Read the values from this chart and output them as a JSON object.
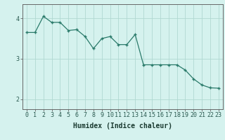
{
  "x": [
    0,
    1,
    2,
    3,
    4,
    5,
    6,
    7,
    8,
    9,
    10,
    11,
    12,
    13,
    14,
    15,
    16,
    17,
    18,
    19,
    20,
    21,
    22,
    23
  ],
  "y": [
    3.65,
    3.65,
    4.05,
    3.9,
    3.9,
    3.7,
    3.72,
    3.55,
    3.25,
    3.5,
    3.55,
    3.35,
    3.35,
    3.6,
    2.85,
    2.85,
    2.85,
    2.85,
    2.85,
    2.72,
    2.5,
    2.35,
    2.28,
    2.27
  ],
  "line_color": "#2a7a6a",
  "marker": "+",
  "bg_color": "#d5f2ee",
  "grid_color": "#b0d8d2",
  "axis_color": "#666666",
  "xlabel": "Humidex (Indice chaleur)",
  "ylim": [
    1.75,
    4.35
  ],
  "xlim": [
    -0.5,
    23.5
  ],
  "yticks": [
    2,
    3,
    4
  ],
  "xtick_labels": [
    "0",
    "1",
    "2",
    "3",
    "4",
    "5",
    "6",
    "7",
    "8",
    "9",
    "10",
    "11",
    "12",
    "13",
    "14",
    "15",
    "16",
    "17",
    "18",
    "19",
    "20",
    "21",
    "22",
    "23"
  ],
  "label_fontsize": 6.5,
  "tick_fontsize": 6.0,
  "xlabel_fontsize": 7.0
}
